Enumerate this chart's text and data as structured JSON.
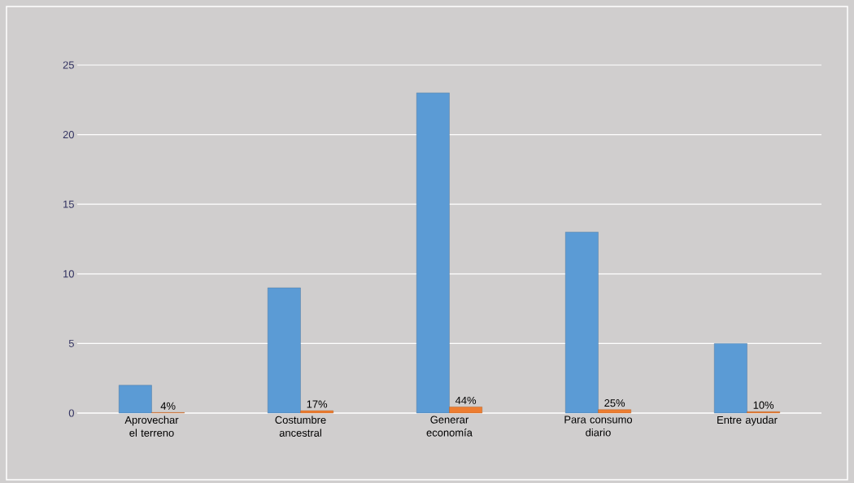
{
  "chart_data": {
    "type": "bar",
    "categories": [
      "Aprovechar el terreno",
      "Costumbre ancestral",
      "Generar economía",
      "Para consumo diario",
      "Entre ayudar"
    ],
    "series": [
      {
        "color": "#5b9bd5",
        "values": [
          2,
          9,
          23,
          13,
          5
        ]
      },
      {
        "color": "#ed7d31",
        "values": [
          0.04,
          0.17,
          0.44,
          0.25,
          0.1
        ],
        "value_labels": [
          "4%",
          "17%",
          "44%",
          "25%",
          "10%"
        ]
      }
    ],
    "ylim": [
      0,
      25
    ],
    "yticks": [
      0,
      5,
      10,
      15,
      20,
      25
    ],
    "grid": "y"
  }
}
